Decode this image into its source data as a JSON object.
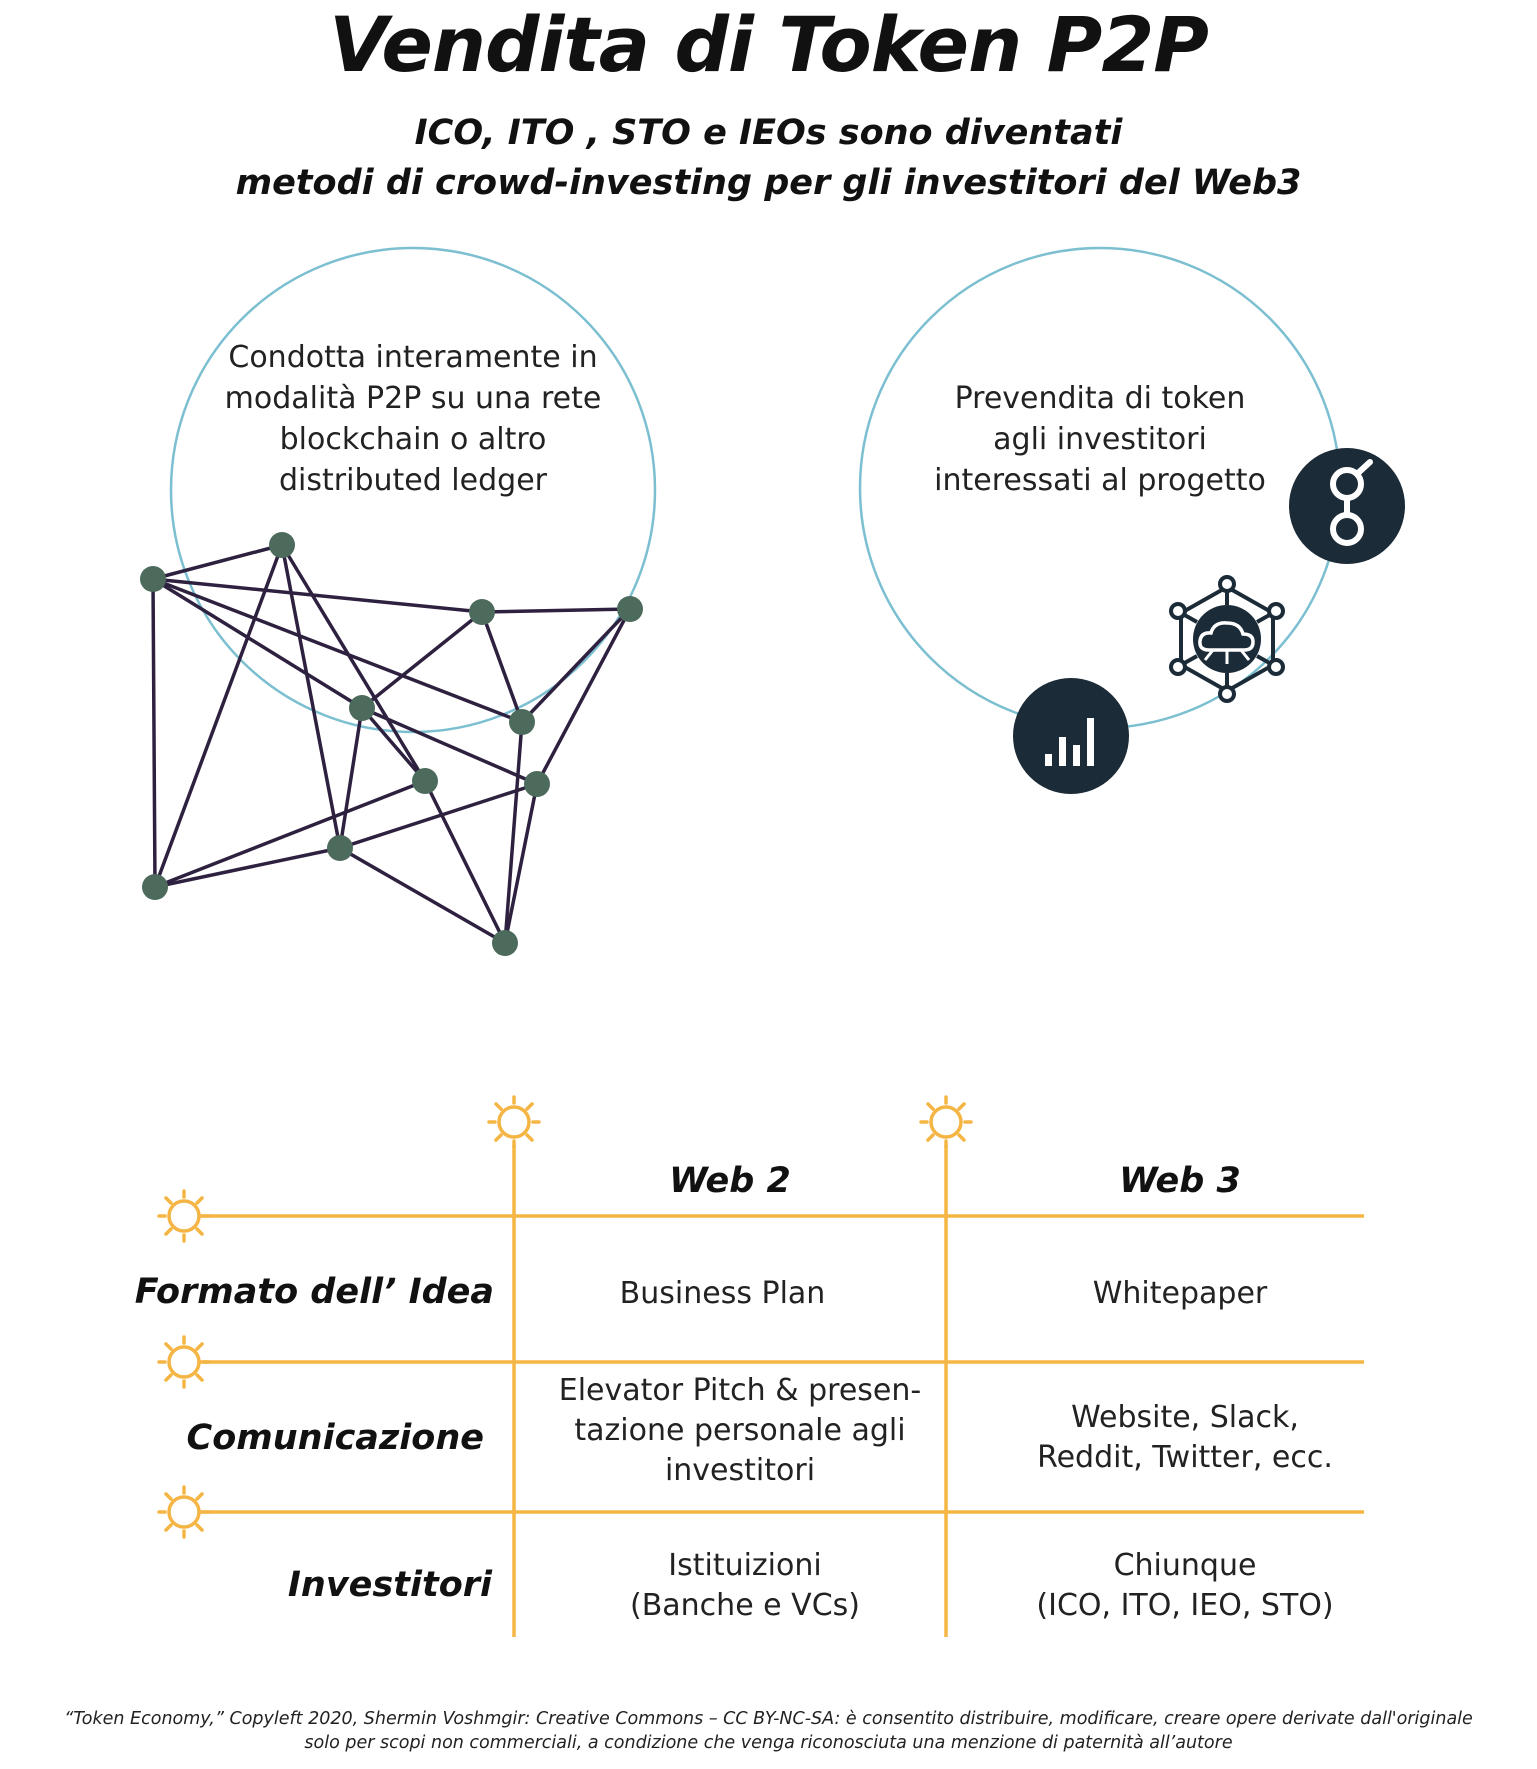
{
  "title": "Vendita di Token P2P",
  "subtitle": {
    "line1": "ICO, ITO , STO e IEOs sono diventati",
    "line2": "metodi di crowd-investing per gli investitori del Web3"
  },
  "left_circle": {
    "lines": [
      "Condotta interamente in",
      "modalità P2P su una rete",
      "blockchain o altro",
      "distributed ledger"
    ]
  },
  "right_circle": {
    "lines": [
      "Prevendita di token",
      "agli investitori",
      "interessati al progetto"
    ]
  },
  "icons": [
    "network-graph-icon",
    "glasses-token-icon",
    "cloud-network-icon",
    "bar-chart-icon",
    "sun-icon"
  ],
  "table": {
    "columns": [
      "Web 2",
      "Web 3"
    ],
    "rows": [
      {
        "label": "Formato dell’ Idea",
        "web2": [
          "Business Plan"
        ],
        "web3": [
          "Whitepaper"
        ]
      },
      {
        "label": "Comunicazione",
        "web2": [
          "Elevator Pitch & presen-",
          "tazione personale agli",
          "investitori"
        ],
        "web3": [
          "Website, Slack,",
          "Reddit, Twitter, ecc."
        ]
      },
      {
        "label": "Investitori",
        "web2": [
          "Istituizioni",
          "(Banche e  VCs)"
        ],
        "web3": [
          "Chiunque",
          "(ICO, ITO, IEO, STO)"
        ]
      }
    ]
  },
  "footer": {
    "line1": "“Token Economy,” Copyleft 2020, Shermin Voshmgir: Creative Commons – CC BY-NC-SA: è consentito distribuire, modificare, creare opere derivate dall'originale",
    "line2": "solo per scopi non commerciali, a condizione che venga riconosciuta una menzione di paternità all’autore"
  },
  "colors": {
    "circle_outline": "#7bbfd0",
    "network_node": "#4d6b5c",
    "network_edge": "#2e2140",
    "icon_dark": "#1c2b38",
    "grid_orange": "#f5b544"
  }
}
